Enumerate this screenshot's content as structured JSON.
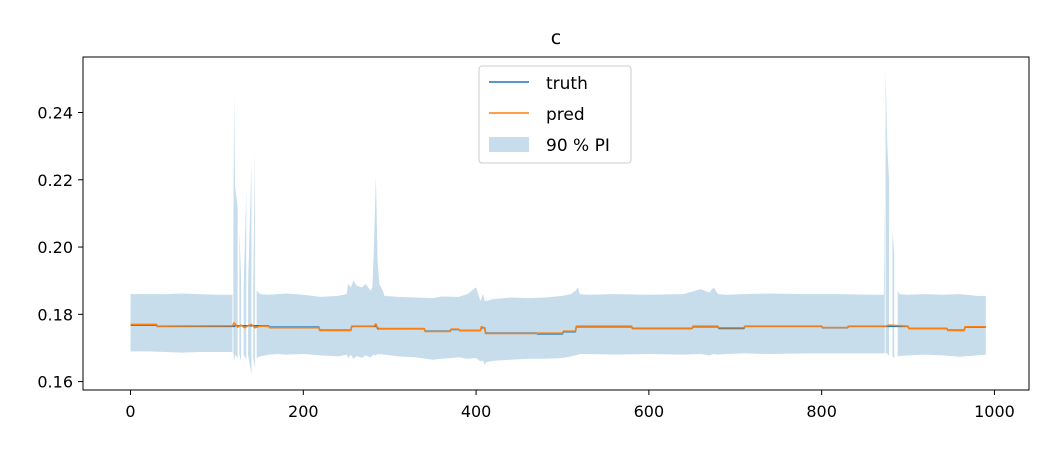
{
  "chart_data": {
    "type": "line",
    "title": "c",
    "xlabel": "",
    "ylabel": "",
    "xlim": [
      -55,
      1040
    ],
    "ylim": [
      0.1575,
      0.2565
    ],
    "x_ticks": [
      0,
      200,
      400,
      600,
      800,
      1000
    ],
    "y_ticks": [
      0.16,
      0.18,
      0.2,
      0.22,
      0.24
    ],
    "x_tick_labels": [
      "0",
      "200",
      "400",
      "600",
      "800",
      "1000"
    ],
    "y_tick_labels": [
      "0.16",
      "0.18",
      "0.20",
      "0.22",
      "0.24"
    ],
    "grid": false,
    "legend_position": "upper center",
    "legend": [
      "truth",
      "pred",
      "90 % PI"
    ],
    "colors": {
      "truth": "#1f77b4",
      "pred": "#ff7f0e",
      "band": "#1f77b4"
    },
    "series": [
      {
        "name": "truth",
        "x": [
          0,
          30,
          31,
          120,
          121,
          160,
          161,
          218,
          219,
          255,
          256,
          285,
          286,
          340,
          341,
          370,
          371,
          380,
          381,
          405,
          406,
          410,
          411,
          470,
          471,
          500,
          501,
          515,
          516,
          580,
          581,
          650,
          651,
          680,
          681,
          710,
          711,
          800,
          801,
          830,
          831,
          900,
          901,
          945,
          946,
          965,
          966,
          990
        ],
        "y": [
          0.1768,
          0.1768,
          0.1764,
          0.1764,
          0.1766,
          0.1766,
          0.1762,
          0.1762,
          0.1753,
          0.1753,
          0.1764,
          0.1764,
          0.1757,
          0.1757,
          0.175,
          0.175,
          0.1755,
          0.1755,
          0.1752,
          0.1752,
          0.176,
          0.176,
          0.1744,
          0.1744,
          0.1742,
          0.1742,
          0.1748,
          0.1748,
          0.1763,
          0.1763,
          0.1758,
          0.1758,
          0.1763,
          0.1763,
          0.1758,
          0.1758,
          0.1764,
          0.1764,
          0.176,
          0.176,
          0.1764,
          0.1764,
          0.1758,
          0.1758,
          0.1753,
          0.1753,
          0.1762,
          0.1762
        ]
      },
      {
        "name": "pred",
        "x": [
          0,
          30,
          31,
          118,
          120,
          124,
          128,
          132,
          136,
          140,
          144,
          150,
          160,
          161,
          218,
          219,
          255,
          256,
          282,
          284,
          286,
          288,
          340,
          341,
          370,
          371,
          380,
          381,
          405,
          406,
          410,
          411,
          470,
          471,
          500,
          501,
          515,
          516,
          580,
          581,
          650,
          651,
          680,
          681,
          710,
          711,
          800,
          801,
          830,
          831,
          875,
          878,
          900,
          901,
          945,
          946,
          965,
          966,
          990
        ],
        "y": [
          0.177,
          0.177,
          0.1765,
          0.1766,
          0.1775,
          0.1762,
          0.1768,
          0.176,
          0.1766,
          0.177,
          0.176,
          0.1765,
          0.1765,
          0.176,
          0.176,
          0.1752,
          0.1752,
          0.1765,
          0.1765,
          0.1772,
          0.176,
          0.1758,
          0.1758,
          0.1749,
          0.1749,
          0.1756,
          0.1756,
          0.1752,
          0.1752,
          0.1763,
          0.176,
          0.1743,
          0.1743,
          0.1744,
          0.1744,
          0.175,
          0.175,
          0.1765,
          0.1765,
          0.1759,
          0.1759,
          0.1765,
          0.1765,
          0.176,
          0.176,
          0.1765,
          0.1765,
          0.1761,
          0.1761,
          0.1765,
          0.1765,
          0.1768,
          0.1765,
          0.1758,
          0.1758,
          0.1752,
          0.1752,
          0.1763,
          0.1763
        ]
      }
    ],
    "band": {
      "name": "90 % PI",
      "x": [
        0,
        20,
        40,
        60,
        80,
        100,
        118,
        119,
        120,
        121,
        124,
        126,
        128,
        131,
        134,
        136,
        140,
        142,
        144,
        146,
        150,
        160,
        170,
        180,
        200,
        220,
        240,
        250,
        252,
        255,
        258,
        262,
        268,
        272,
        278,
        280,
        282,
        284,
        286,
        288,
        290,
        292,
        294,
        310,
        330,
        350,
        360,
        380,
        390,
        400,
        405,
        408,
        410,
        412,
        420,
        440,
        460,
        480,
        500,
        510,
        515,
        518,
        520,
        530,
        560,
        600,
        640,
        660,
        670,
        675,
        680,
        690,
        710,
        740,
        780,
        820,
        860,
        872,
        873,
        874,
        876,
        878,
        880,
        882,
        884,
        886,
        888,
        890,
        900,
        920,
        940,
        960,
        980,
        990
      ],
      "upper": [
        0.186,
        0.186,
        0.186,
        0.1862,
        0.186,
        0.1858,
        0.1858,
        0.205,
        0.245,
        0.218,
        0.212,
        0.205,
        0.191,
        0.188,
        0.217,
        0.188,
        0.225,
        0.188,
        0.229,
        0.187,
        0.186,
        0.1858,
        0.186,
        0.1862,
        0.1858,
        0.1852,
        0.1855,
        0.186,
        0.189,
        0.188,
        0.19,
        0.1885,
        0.188,
        0.189,
        0.187,
        0.188,
        0.202,
        0.221,
        0.196,
        0.189,
        0.188,
        0.187,
        0.1855,
        0.1852,
        0.185,
        0.1848,
        0.1853,
        0.1852,
        0.186,
        0.188,
        0.184,
        0.186,
        0.184,
        0.184,
        0.1845,
        0.185,
        0.1848,
        0.185,
        0.1855,
        0.186,
        0.187,
        0.188,
        0.186,
        0.1858,
        0.186,
        0.1858,
        0.186,
        0.1875,
        0.1865,
        0.188,
        0.186,
        0.1858,
        0.186,
        0.1862,
        0.186,
        0.186,
        0.1858,
        0.1858,
        0.215,
        0.252,
        0.23,
        0.22,
        0.21,
        0.205,
        0.198,
        0.19,
        0.187,
        0.186,
        0.1858,
        0.186,
        0.1858,
        0.186,
        0.1855,
        0.1855
      ],
      "lower": [
        0.169,
        0.169,
        0.1688,
        0.1686,
        0.1688,
        0.1688,
        0.1688,
        0.1688,
        0.166,
        0.168,
        0.167,
        0.168,
        0.166,
        0.168,
        0.1665,
        0.168,
        0.162,
        0.1672,
        0.164,
        0.167,
        0.1675,
        0.168,
        0.1682,
        0.168,
        0.1682,
        0.1678,
        0.1675,
        0.168,
        0.167,
        0.168,
        0.1668,
        0.1676,
        0.167,
        0.1678,
        0.1672,
        0.1678,
        0.168,
        0.1678,
        0.1682,
        0.168,
        0.1682,
        0.168,
        0.168,
        0.1675,
        0.1672,
        0.1665,
        0.1668,
        0.1672,
        0.1668,
        0.167,
        0.166,
        0.1662,
        0.165,
        0.1658,
        0.1662,
        0.1665,
        0.1668,
        0.1668,
        0.167,
        0.1675,
        0.1678,
        0.168,
        0.1682,
        0.1682,
        0.168,
        0.1682,
        0.168,
        0.1682,
        0.1678,
        0.1682,
        0.168,
        0.1682,
        0.1684,
        0.1682,
        0.1684,
        0.1684,
        0.1684,
        0.1684,
        0.1684,
        0.1684,
        0.1684,
        0.1676,
        0.1682,
        0.1675,
        0.167,
        0.168,
        0.1674,
        0.1676,
        0.1678,
        0.168,
        0.1678,
        0.1674,
        0.1678,
        0.168
      ],
      "gaps": [
        [
          118,
          119
        ],
        [
          124,
          126
        ],
        [
          128,
          131
        ],
        [
          134,
          136
        ],
        [
          140,
          142
        ],
        [
          144,
          146
        ],
        [
          873,
          874
        ],
        [
          878,
          880
        ],
        [
          880,
          882
        ],
        [
          884,
          886
        ],
        [
          886,
          888
        ]
      ]
    }
  }
}
